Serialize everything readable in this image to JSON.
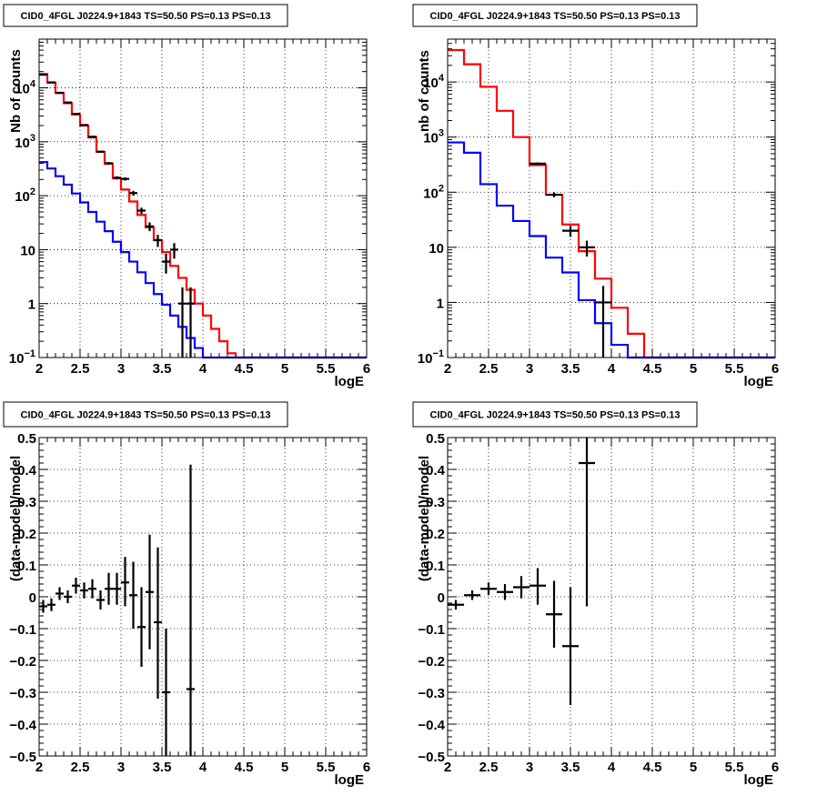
{
  "chart_data": [
    {
      "type": "histogram",
      "title": "CID0_4FGL J0224.9+1843 TS=50.50 PS=0.13 PS=0.13",
      "xlabel": "logE",
      "ylabel": "Nb of counts",
      "xlim": [
        2,
        6
      ],
      "ylim": [
        0.1,
        80000
      ],
      "log_y": true,
      "grid": true,
      "x_ticks": [
        "2",
        "2.5",
        "3",
        "3.5",
        "4",
        "4.5",
        "5",
        "5.5",
        "6"
      ],
      "y_ticks": [
        "10<sup>-1</sup>",
        "1",
        "10",
        "10²",
        "10³",
        "10⁴"
      ],
      "y_tick_labels": [
        {
          "v": 0.1,
          "base": "10",
          "exp": "−1"
        },
        {
          "v": 1,
          "base": "1",
          "exp": ""
        },
        {
          "v": 10,
          "base": "10",
          "exp": ""
        },
        {
          "v": 100,
          "base": "10",
          "exp": "2"
        },
        {
          "v": 1000,
          "base": "10",
          "exp": "3"
        },
        {
          "v": 10000,
          "base": "10",
          "exp": "4"
        }
      ],
      "bin_edges": [
        2.0,
        2.1,
        2.2,
        2.3,
        2.4,
        2.5,
        2.6,
        2.7,
        2.8,
        2.9,
        3.0,
        3.1,
        3.2,
        3.3,
        3.4,
        3.5,
        3.6,
        3.7,
        3.8,
        3.9,
        4.0,
        4.1,
        4.2,
        4.3,
        4.4,
        4.5,
        4.6,
        4.7,
        4.8,
        4.9,
        5.0,
        5.1,
        5.2,
        5.3,
        5.4,
        5.5,
        5.6,
        5.7,
        5.8,
        5.9,
        6.0
      ],
      "series": [
        {
          "color": "#ff0000",
          "style": "step",
          "values": [
            18000,
            12500,
            8000,
            5200,
            3200,
            2000,
            1200,
            650,
            390,
            210,
            130,
            78,
            44,
            26,
            15,
            9,
            5,
            3,
            1.8,
            1.0,
            0.6,
            0.34,
            0.2,
            0.12,
            0.1,
            0.1,
            0.1,
            0.1,
            0.1,
            0.1,
            0.1,
            0.1,
            0.1,
            0.1,
            0.1,
            0.1,
            0.1,
            0.1,
            0.1,
            0.1
          ]
        },
        {
          "color": "#0000ff",
          "style": "step",
          "values": [
            420,
            320,
            230,
            160,
            110,
            75,
            50,
            33,
            22,
            14,
            9,
            6,
            3.8,
            2.4,
            1.5,
            0.95,
            0.6,
            0.37,
            0.23,
            0.15,
            0.1,
            0.1,
            0.1,
            0.1,
            0.1,
            0.1,
            0.1,
            0.1,
            0.1,
            0.1,
            0.1,
            0.1,
            0.1,
            0.1,
            0.1,
            0.1,
            0.1,
            0.1,
            0.1,
            0.1
          ]
        },
        {
          "color": "#000000",
          "style": "points",
          "points": [
            {
              "x": 2.05,
              "y": 17500,
              "lo": 17300,
              "hi": 17700
            },
            {
              "x": 2.15,
              "y": 12600,
              "lo": 12400,
              "hi": 12800
            },
            {
              "x": 2.25,
              "y": 8100,
              "lo": 7950,
              "hi": 8250
            },
            {
              "x": 2.35,
              "y": 5350,
              "lo": 5250,
              "hi": 5450
            },
            {
              "x": 2.45,
              "y": 3300,
              "lo": 3200,
              "hi": 3400
            },
            {
              "x": 2.55,
              "y": 2040,
              "lo": 1990,
              "hi": 2090
            },
            {
              "x": 2.65,
              "y": 1240,
              "lo": 1200,
              "hi": 1280
            },
            {
              "x": 2.75,
              "y": 655,
              "lo": 630,
              "hi": 680
            },
            {
              "x": 2.85,
              "y": 400,
              "lo": 380,
              "hi": 420
            },
            {
              "x": 2.95,
              "y": 215,
              "lo": 200,
              "hi": 230
            },
            {
              "x": 3.05,
              "y": 205,
              "lo": 191,
              "hi": 219
            },
            {
              "x": 3.15,
              "y": 112,
              "lo": 101,
              "hi": 123
            },
            {
              "x": 3.25,
              "y": 53,
              "lo": 46,
              "hi": 60
            },
            {
              "x": 3.35,
              "y": 27,
              "lo": 22,
              "hi": 32
            },
            {
              "x": 3.45,
              "y": 15,
              "lo": 11.2,
              "hi": 18.8
            },
            {
              "x": 3.55,
              "y": 6,
              "lo": 3.6,
              "hi": 8.4
            },
            {
              "x": 3.65,
              "y": 10,
              "lo": 6.8,
              "hi": 13.2
            },
            {
              "x": 3.75,
              "y": 1,
              "lo": 0.1,
              "hi": 2
            },
            {
              "x": 3.85,
              "y": 1,
              "lo": 0.1,
              "hi": 2
            }
          ]
        }
      ]
    },
    {
      "type": "histogram",
      "title": "CID0_4FGL J0224.9+1843 TS=50.50 PS=0.13 PS=0.13",
      "xlabel": "logE",
      "ylabel": "nb of counts",
      "xlim": [
        2,
        6
      ],
      "ylim": [
        0.1,
        60000
      ],
      "log_y": true,
      "grid": true,
      "x_ticks": [
        "2",
        "2.5",
        "3",
        "3.5",
        "4",
        "4.5",
        "5",
        "5.5",
        "6"
      ],
      "y_tick_labels": [
        {
          "v": 0.1,
          "base": "10",
          "exp": "−1"
        },
        {
          "v": 1,
          "base": "1",
          "exp": ""
        },
        {
          "v": 10,
          "base": "10",
          "exp": ""
        },
        {
          "v": 100,
          "base": "10",
          "exp": "2"
        },
        {
          "v": 1000,
          "base": "10",
          "exp": "3"
        },
        {
          "v": 10000,
          "base": "10",
          "exp": "4"
        }
      ],
      "bin_edges": [
        2.0,
        2.2,
        2.4,
        2.6,
        2.8,
        3.0,
        3.2,
        3.4,
        3.6,
        3.8,
        4.0,
        4.2,
        4.4,
        4.6,
        4.8,
        5.0,
        5.2,
        5.4,
        5.6,
        5.8,
        6.0
      ],
      "series": [
        {
          "color": "#ff0000",
          "style": "step",
          "values": [
            38000,
            21000,
            8200,
            3000,
            1000,
            310,
            90,
            26,
            8.5,
            2.7,
            0.8,
            0.27,
            0.1,
            0.1,
            0.1,
            0.1,
            0.1,
            0.1,
            0.1,
            0.1
          ]
        },
        {
          "color": "#0000ff",
          "style": "step",
          "values": [
            800,
            520,
            140,
            57,
            30,
            16,
            6.5,
            3.5,
            1.1,
            0.42,
            0.17,
            0.1,
            0.1,
            0.1,
            0.1,
            0.1,
            0.1,
            0.1,
            0.1,
            0.1
          ]
        },
        {
          "color": "#000000",
          "style": "points",
          "points": [
            {
              "x": 3.1,
              "y": 330,
              "lo": 312,
              "hi": 348
            },
            {
              "x": 3.3,
              "y": 90,
              "lo": 81,
              "hi": 99
            },
            {
              "x": 3.5,
              "y": 20,
              "lo": 15.5,
              "hi": 24.5
            },
            {
              "x": 3.7,
              "y": 10,
              "lo": 6.8,
              "hi": 13.2
            },
            {
              "x": 3.9,
              "y": 1,
              "lo": 0.1,
              "hi": 2
            }
          ]
        }
      ]
    },
    {
      "type": "scatter",
      "title": "CID0_4FGL J0224.9+1843 TS=50.50 PS=0.13 PS=0.13",
      "xlabel": "logE",
      "ylabel": "(data-model)/model",
      "xlim": [
        2,
        6
      ],
      "ylim": [
        -0.5,
        0.5
      ],
      "grid": true,
      "x_ticks": [
        "2",
        "2.5",
        "3",
        "3.5",
        "4",
        "4.5",
        "5",
        "5.5",
        "6"
      ],
      "y_ticks": [
        "−0.5",
        "−0.4",
        "−0.3",
        "−0.2",
        "−0.1",
        "0",
        "0.1",
        "0.2",
        "0.3",
        "0.4",
        "0.5"
      ],
      "points": [
        {
          "x": 2.05,
          "y": -0.03,
          "xerr": 0.05,
          "lo": -0.05,
          "hi": -0.01
        },
        {
          "x": 2.15,
          "y": -0.025,
          "xerr": 0.05,
          "lo": -0.045,
          "hi": -0.005
        },
        {
          "x": 2.25,
          "y": 0.01,
          "xerr": 0.05,
          "lo": -0.01,
          "hi": 0.03
        },
        {
          "x": 2.35,
          "y": 0.0,
          "xerr": 0.05,
          "lo": -0.02,
          "hi": 0.02
        },
        {
          "x": 2.45,
          "y": 0.035,
          "xerr": 0.05,
          "lo": 0.01,
          "hi": 0.06
        },
        {
          "x": 2.55,
          "y": 0.02,
          "xerr": 0.05,
          "lo": -0.005,
          "hi": 0.045
        },
        {
          "x": 2.65,
          "y": 0.025,
          "xerr": 0.05,
          "lo": -0.005,
          "hi": 0.055
        },
        {
          "x": 2.75,
          "y": -0.01,
          "xerr": 0.05,
          "lo": -0.04,
          "hi": 0.02
        },
        {
          "x": 2.85,
          "y": 0.025,
          "xerr": 0.05,
          "lo": -0.025,
          "hi": 0.075
        },
        {
          "x": 2.95,
          "y": 0.025,
          "xerr": 0.05,
          "lo": -0.025,
          "hi": 0.075
        },
        {
          "x": 3.05,
          "y": 0.045,
          "xerr": 0.05,
          "lo": -0.03,
          "hi": 0.125
        },
        {
          "x": 3.15,
          "y": 0.005,
          "xerr": 0.05,
          "lo": -0.1,
          "hi": 0.11
        },
        {
          "x": 3.25,
          "y": -0.095,
          "xerr": 0.05,
          "lo": -0.22,
          "hi": 0.03
        },
        {
          "x": 3.35,
          "y": 0.015,
          "xerr": 0.05,
          "lo": -0.165,
          "hi": 0.195
        },
        {
          "x": 3.45,
          "y": -0.08,
          "xerr": 0.05,
          "lo": -0.32,
          "hi": 0.155
        },
        {
          "x": 3.55,
          "y": -0.3,
          "xerr": 0.05,
          "lo": -0.5,
          "hi": -0.1
        },
        {
          "x": 3.85,
          "y": -0.29,
          "xerr": 0.05,
          "lo": -0.5,
          "hi": 0.415
        }
      ]
    },
    {
      "type": "scatter",
      "title": "CID0_4FGL J0224.9+1843 TS=50.50 PS=0.13 PS=0.13",
      "xlabel": "logE",
      "ylabel": "(data-model)/model",
      "xlim": [
        2,
        6
      ],
      "ylim": [
        -0.5,
        0.5
      ],
      "grid": true,
      "x_ticks": [
        "2",
        "2.5",
        "3",
        "3.5",
        "4",
        "4.5",
        "5",
        "5.5",
        "6"
      ],
      "y_ticks": [
        "−0.5",
        "−0.4",
        "−0.3",
        "−0.2",
        "−0.1",
        "0",
        "0.1",
        "0.2",
        "0.3",
        "0.4",
        "0.5"
      ],
      "points": [
        {
          "x": 2.1,
          "y": -0.025,
          "xerr": 0.1,
          "lo": -0.04,
          "hi": -0.01
        },
        {
          "x": 2.3,
          "y": 0.005,
          "xerr": 0.1,
          "lo": -0.01,
          "hi": 0.02
        },
        {
          "x": 2.5,
          "y": 0.025,
          "xerr": 0.1,
          "lo": 0.005,
          "hi": 0.045
        },
        {
          "x": 2.7,
          "y": 0.015,
          "xerr": 0.1,
          "lo": -0.01,
          "hi": 0.04
        },
        {
          "x": 2.9,
          "y": 0.03,
          "xerr": 0.1,
          "lo": -0.005,
          "hi": 0.065
        },
        {
          "x": 3.1,
          "y": 0.035,
          "xerr": 0.1,
          "lo": -0.025,
          "hi": 0.09
        },
        {
          "x": 3.3,
          "y": -0.055,
          "xerr": 0.1,
          "lo": -0.16,
          "hi": 0.05
        },
        {
          "x": 3.5,
          "y": -0.155,
          "xerr": 0.1,
          "lo": -0.34,
          "hi": 0.03
        },
        {
          "x": 3.7,
          "y": 0.42,
          "xerr": 0.1,
          "lo": -0.03,
          "hi": 0.5
        }
      ]
    }
  ]
}
